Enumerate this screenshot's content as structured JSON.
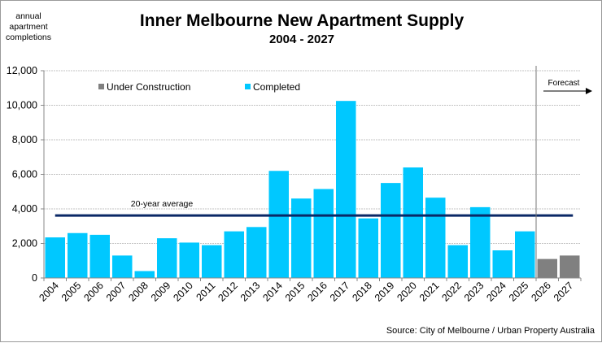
{
  "chart_data": {
    "type": "bar",
    "title": "Inner Melbourne New Apartment Supply",
    "subtitle": "2004 - 2027",
    "ylabel": "annual apartment completions",
    "ylabel_lines": [
      "annual",
      "apartment",
      "completions"
    ],
    "ylim": [
      0,
      12000
    ],
    "yticks": [
      "0",
      "2,000",
      "4,000",
      "6,000",
      "8,000",
      "10,000",
      "12,000"
    ],
    "ytick_values": [
      0,
      2000,
      4000,
      6000,
      8000,
      10000,
      12000
    ],
    "grid": true,
    "legend_position": "top-left",
    "categories": [
      "2004",
      "2005",
      "2006",
      "2007",
      "2008",
      "2009",
      "2010",
      "2011",
      "2012",
      "2013",
      "2014",
      "2015",
      "2016",
      "2017",
      "2018",
      "2019",
      "2020",
      "2021",
      "2022",
      "2023",
      "2024",
      "2025",
      "2026",
      "2027"
    ],
    "series": [
      {
        "name": "Under Construction",
        "color": "#808080",
        "values": [
          null,
          null,
          null,
          null,
          null,
          null,
          null,
          null,
          null,
          null,
          null,
          null,
          null,
          null,
          null,
          null,
          null,
          null,
          null,
          null,
          null,
          null,
          1100,
          1300
        ]
      },
      {
        "name": "Completed",
        "color": "#00c8ff",
        "values": [
          2350,
          2600,
          2500,
          1300,
          400,
          2300,
          2050,
          1900,
          2700,
          2950,
          6200,
          4600,
          5150,
          10250,
          3450,
          5500,
          6400,
          4650,
          1900,
          4100,
          1600,
          2700,
          null,
          null
        ]
      }
    ],
    "average": {
      "label": "20-year average",
      "value": 3620,
      "color": "#0a2866"
    },
    "forecast": {
      "label": "Forecast",
      "from_category": "2026"
    },
    "source": "Source: City of Melbourne / Urban Property Australia"
  }
}
